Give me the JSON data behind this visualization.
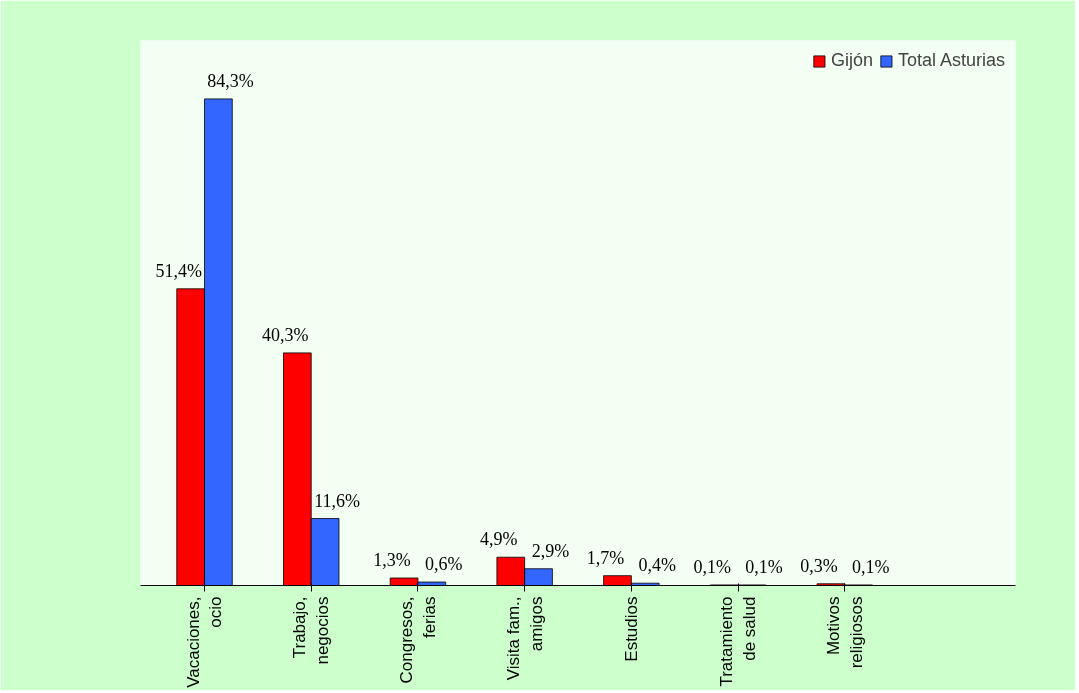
{
  "chart_data": {
    "type": "bar",
    "categories": [
      "Vacaciones,\nocio",
      "Trabajo,\nnegocios",
      "Congresos,\nferias",
      "Visita fam.,\namigos",
      "Estudios",
      "Tratamiento\nde salud",
      "Motivos\nreligiosos"
    ],
    "series": [
      {
        "name": "Gijón",
        "color": "#ff0000",
        "values": [
          51.4,
          40.3,
          1.3,
          4.9,
          1.7,
          0.1,
          0.3
        ],
        "value_labels": [
          "51,4%",
          "40,3%",
          "1,3%",
          "4,9%",
          "1,7%",
          "0,1%",
          "0,3%"
        ]
      },
      {
        "name": "Total Asturias",
        "color": "#3366ff",
        "values": [
          84.3,
          11.6,
          0.6,
          2.9,
          0.4,
          0.1,
          0.1
        ],
        "value_labels": [
          "84,3%",
          "11,6%",
          "0,6%",
          "2,9%",
          "0,4%",
          "0,1%",
          "0,1%"
        ]
      }
    ],
    "legend": "top right",
    "grid": false
  }
}
